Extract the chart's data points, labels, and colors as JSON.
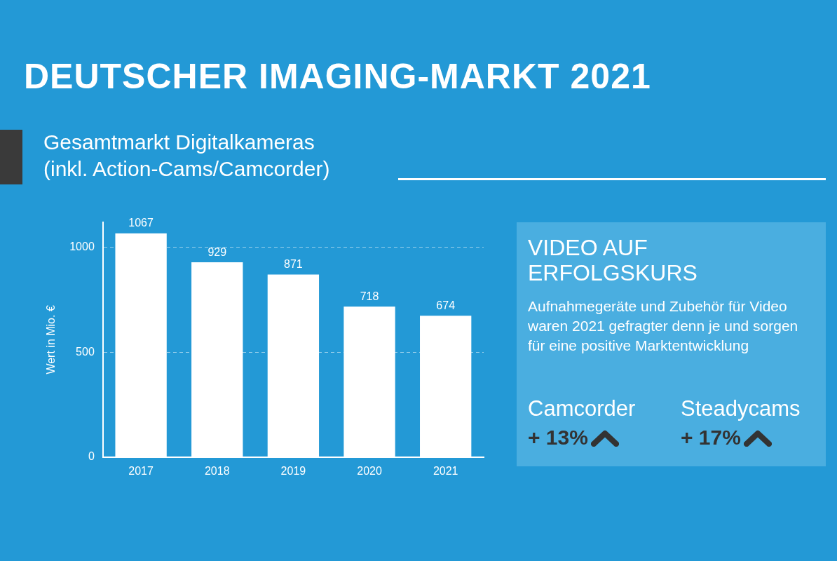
{
  "chart_data": [
    {
      "type": "bar",
      "title": "DEUTSCHER IMAGING-MARKT 2021",
      "subtitle": "Gesamtmarkt Digitalkameras\n(inkl. Action-Cams/Camcorder)",
      "ylabel": "Wert in Mio. €",
      "categories": [
        "2017",
        "2018",
        "2019",
        "2020",
        "2021"
      ],
      "values": [
        1067,
        929,
        871,
        718,
        674
      ],
      "color": "#ffffff",
      "ylim": [
        0,
        1120
      ],
      "yticks": [
        0,
        500,
        1000
      ],
      "grid": "y",
      "data_labels": true,
      "legend": false
    },
    {
      "type": "other",
      "title": "VIDEO AUF\nERFOLGSKURS",
      "subtitle": "Aufnahmegeräte und Zubehör für Video waren 2021 gefragter denn je und sorgen für eine positive Marktentwicklung",
      "annotations": [
        "Camcorder",
        "+ 13%",
        "Steadycams",
        "+ 17%"
      ]
    }
  ]
}
